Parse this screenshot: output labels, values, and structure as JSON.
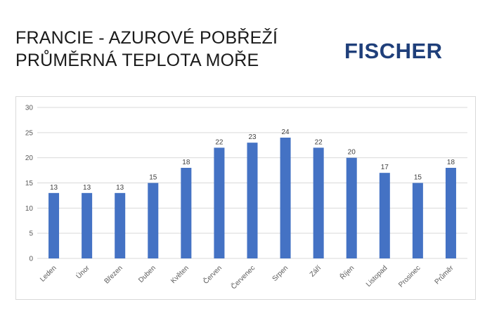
{
  "header": {
    "title_line1": "FRANCIE - AZUROVÉ POBŘEŽÍ",
    "title_line2": "PRŮMĚRNÁ TEPLOTA MOŘE",
    "logo_text": "FISCHER"
  },
  "colors": {
    "bar": "#4472c4",
    "grid": "#d9d9d9",
    "logo": "#1f3f7a"
  },
  "chart_data": {
    "type": "bar",
    "title": "",
    "xlabel": "",
    "ylabel": "",
    "ylim": [
      0,
      30
    ],
    "yticks": [
      0,
      5,
      10,
      15,
      20,
      25,
      30
    ],
    "grid": true,
    "legend": "none",
    "categories": [
      "Leden",
      "Únor",
      "Březen",
      "Duben",
      "Květen",
      "Červen",
      "Červenec",
      "Srpen",
      "Září",
      "Říjen",
      "Listopad",
      "Prosinec",
      "Průměr"
    ],
    "values": [
      13,
      13,
      13,
      15,
      18,
      22,
      23,
      24,
      22,
      20,
      17,
      15,
      18
    ]
  }
}
